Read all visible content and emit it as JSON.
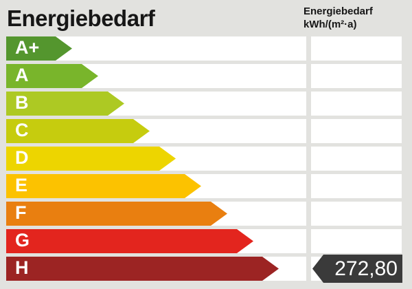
{
  "title": "Energiebedarf",
  "unit": {
    "line1": "Energiebedarf",
    "line2": "kWh/(m²·a)"
  },
  "bands": [
    {
      "label": "A+",
      "color": "#54962e",
      "width_css": "96px"
    },
    {
      "label": "A",
      "color": "#79b52b",
      "width_css": "134px"
    },
    {
      "label": "B",
      "color": "#adc923",
      "width_css": "172px"
    },
    {
      "label": "C",
      "color": "#c6cc0e",
      "width_css": "209px"
    },
    {
      "label": "D",
      "color": "#edd500",
      "width_css": "247px"
    },
    {
      "label": "E",
      "color": "#fcc200",
      "width_css": "284px"
    },
    {
      "label": "F",
      "color": "#e97f10",
      "width_css": "322px"
    },
    {
      "label": "G",
      "color": "#e3251e",
      "width_css": "360px"
    },
    {
      "label": "H",
      "color": "#9c2423",
      "width_css": "397px"
    }
  ],
  "value": {
    "text": "272,80",
    "band": "H",
    "arrow_color": "#3a3a3a"
  },
  "colors": {
    "background": "#e2e2df",
    "track": "#ffffff",
    "text": "#161616"
  },
  "chart_data": {
    "type": "bar",
    "title": "Energiebedarf",
    "unit": "kWh/(m²·a)",
    "categories": [
      "A+",
      "A",
      "B",
      "C",
      "D",
      "E",
      "F",
      "G",
      "H"
    ],
    "band_colors": [
      "#54962e",
      "#79b52b",
      "#adc923",
      "#c6cc0e",
      "#edd500",
      "#fcc200",
      "#e97f10",
      "#e3251e",
      "#9c2423"
    ],
    "value": 272.8,
    "value_label": "272,80",
    "indicated_band": "H",
    "legend_position": "none",
    "grid": false
  }
}
